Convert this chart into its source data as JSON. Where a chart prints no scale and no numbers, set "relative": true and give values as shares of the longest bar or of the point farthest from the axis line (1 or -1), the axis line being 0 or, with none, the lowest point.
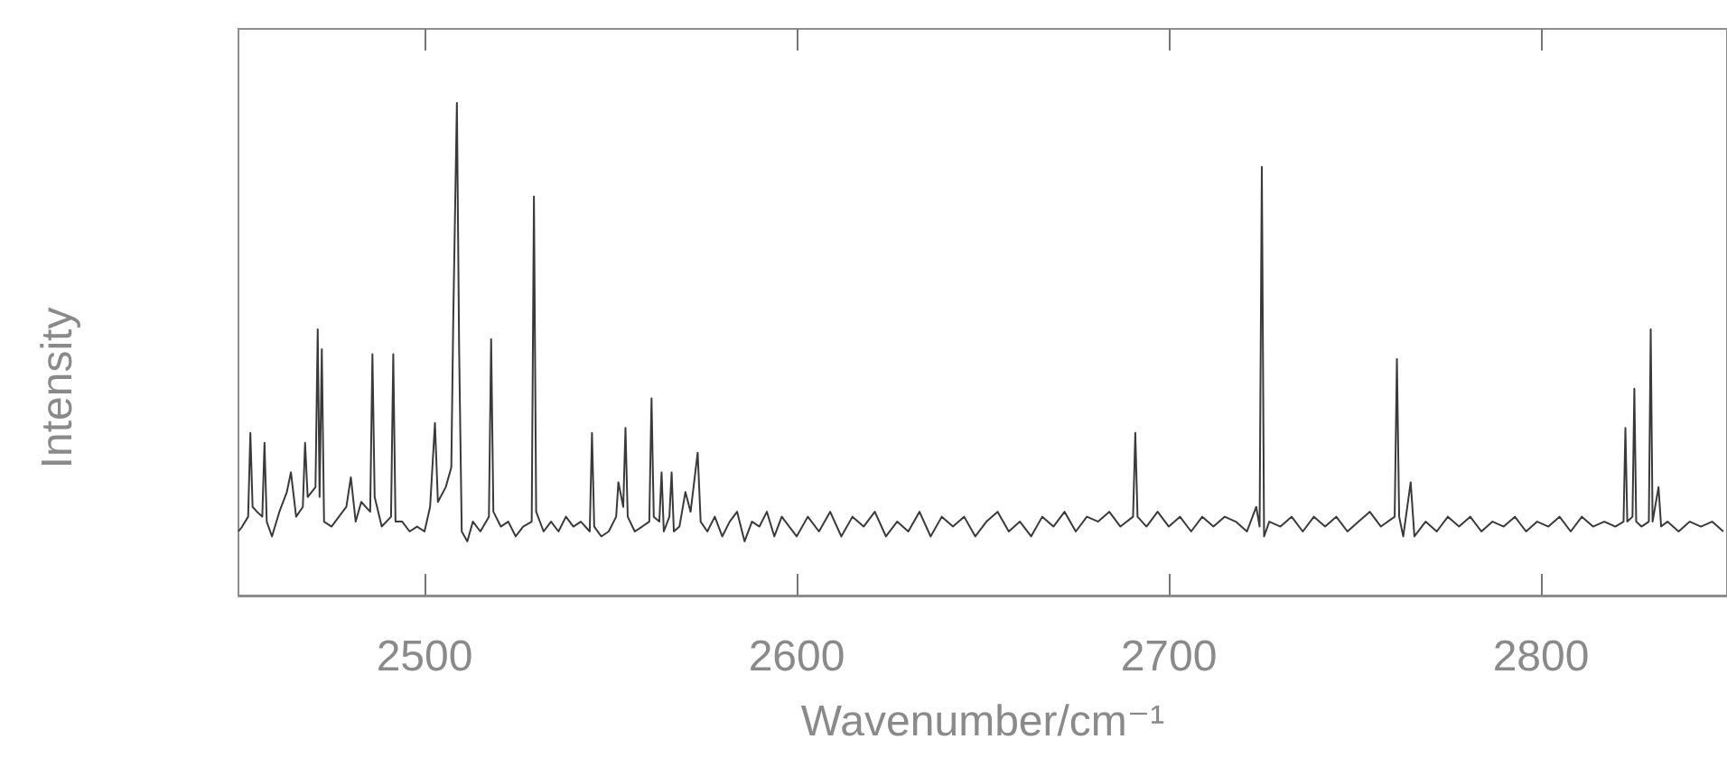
{
  "chart_data": {
    "type": "line",
    "xlabel": "Wavenumber/cm⁻¹",
    "ylabel": "Intensity",
    "relative": true,
    "marker": "none",
    "color": "#3a3a3a",
    "xlim": [
      2450,
      2850
    ],
    "xticks": [
      2500,
      2600,
      2700,
      2800
    ],
    "x": [
      2450,
      2451,
      2452.6,
      2453.2,
      2453.8,
      2455,
      2456.4,
      2457,
      2457.6,
      2459,
      2461,
      2463,
      2464.1,
      2465.5,
      2467.3,
      2467.9,
      2468.6,
      2470.7,
      2471.3,
      2471.8,
      2472.4,
      2473,
      2475,
      2477,
      2479,
      2480.2,
      2481.5,
      2483,
      2485.4,
      2486,
      2486.6,
      2488.5,
      2491,
      2491.6,
      2492.2,
      2494,
      2496,
      2498,
      2500,
      2501.5,
      2502.8,
      2503.6,
      2505.7,
      2507.2,
      2507.7,
      2508.7,
      2509.3,
      2510,
      2511.5,
      2513,
      2515,
      2517.3,
      2517.9,
      2518.5,
      2520.5,
      2522.5,
      2524.5,
      2526.5,
      2528.8,
      2529.4,
      2530,
      2532,
      2534,
      2536,
      2538,
      2540,
      2542,
      2544.4,
      2545,
      2545.6,
      2547.5,
      2549.5,
      2551.5,
      2552.1,
      2553.4,
      2554,
      2554.6,
      2556.5,
      2558.5,
      2560.4,
      2561,
      2561.6,
      2563.1,
      2563.7,
      2564.3,
      2565.8,
      2566.4,
      2567,
      2568.5,
      2570.1,
      2571.5,
      2573.4,
      2574.2,
      2576,
      2578,
      2580,
      2582,
      2584,
      2586,
      2588,
      2590,
      2592,
      2594,
      2596,
      2598,
      2600,
      2603,
      2606,
      2609,
      2612,
      2615,
      2618,
      2621,
      2624,
      2627,
      2630,
      2633,
      2636,
      2639,
      2642,
      2645,
      2648,
      2651,
      2654,
      2657,
      2660,
      2663,
      2666,
      2669,
      2672,
      2675,
      2678,
      2681,
      2684,
      2687,
      2690.4,
      2691,
      2691.6,
      2694,
      2697,
      2700,
      2703,
      2706,
      2709,
      2712,
      2715,
      2718,
      2721,
      2723.5,
      2724.4,
      2725,
      2725.6,
      2727,
      2730,
      2733,
      2736,
      2739,
      2742,
      2745,
      2748,
      2751,
      2754,
      2757,
      2760.7,
      2761.3,
      2761.9,
      2763,
      2765,
      2766,
      2769,
      2772,
      2775,
      2778,
      2781,
      2784,
      2787,
      2790,
      2793,
      2796,
      2799,
      2802,
      2805,
      2808,
      2811,
      2814,
      2817,
      2820,
      2822.2,
      2822.7,
      2823.2,
      2824.6,
      2825.1,
      2825.6,
      2827,
      2829,
      2829.5,
      2830,
      2831.6,
      2832.3,
      2834,
      2837,
      2840,
      2843,
      2846,
      2849
    ],
    "values": [
      0.13,
      0.14,
      0.16,
      0.33,
      0.18,
      0.17,
      0.16,
      0.31,
      0.15,
      0.12,
      0.17,
      0.21,
      0.25,
      0.16,
      0.18,
      0.31,
      0.2,
      0.22,
      0.54,
      0.2,
      0.5,
      0.15,
      0.14,
      0.16,
      0.18,
      0.24,
      0.15,
      0.19,
      0.17,
      0.49,
      0.2,
      0.14,
      0.16,
      0.49,
      0.15,
      0.15,
      0.13,
      0.14,
      0.13,
      0.18,
      0.35,
      0.19,
      0.22,
      0.26,
      0.55,
      1.0,
      0.5,
      0.13,
      0.11,
      0.15,
      0.13,
      0.16,
      0.52,
      0.17,
      0.14,
      0.15,
      0.12,
      0.14,
      0.15,
      0.81,
      0.17,
      0.13,
      0.15,
      0.13,
      0.16,
      0.14,
      0.15,
      0.13,
      0.33,
      0.14,
      0.12,
      0.13,
      0.16,
      0.23,
      0.18,
      0.34,
      0.16,
      0.13,
      0.14,
      0.15,
      0.4,
      0.16,
      0.15,
      0.25,
      0.13,
      0.16,
      0.25,
      0.13,
      0.14,
      0.21,
      0.17,
      0.29,
      0.15,
      0.13,
      0.16,
      0.12,
      0.15,
      0.17,
      0.11,
      0.15,
      0.14,
      0.17,
      0.12,
      0.16,
      0.14,
      0.12,
      0.16,
      0.13,
      0.17,
      0.12,
      0.16,
      0.14,
      0.17,
      0.12,
      0.15,
      0.13,
      0.17,
      0.12,
      0.16,
      0.14,
      0.16,
      0.12,
      0.15,
      0.17,
      0.13,
      0.15,
      0.12,
      0.16,
      0.14,
      0.17,
      0.13,
      0.16,
      0.15,
      0.17,
      0.14,
      0.16,
      0.33,
      0.16,
      0.14,
      0.17,
      0.14,
      0.16,
      0.13,
      0.16,
      0.14,
      0.16,
      0.15,
      0.13,
      0.18,
      0.14,
      0.87,
      0.12,
      0.15,
      0.14,
      0.16,
      0.13,
      0.16,
      0.14,
      0.16,
      0.13,
      0.15,
      0.17,
      0.14,
      0.16,
      0.48,
      0.16,
      0.12,
      0.23,
      0.12,
      0.15,
      0.13,
      0.16,
      0.14,
      0.16,
      0.13,
      0.15,
      0.14,
      0.16,
      0.13,
      0.15,
      0.14,
      0.16,
      0.13,
      0.16,
      0.14,
      0.15,
      0.14,
      0.15,
      0.34,
      0.15,
      0.16,
      0.42,
      0.15,
      0.14,
      0.15,
      0.54,
      0.15,
      0.22,
      0.14,
      0.15,
      0.13,
      0.15,
      0.14,
      0.15,
      0.13
    ]
  }
}
